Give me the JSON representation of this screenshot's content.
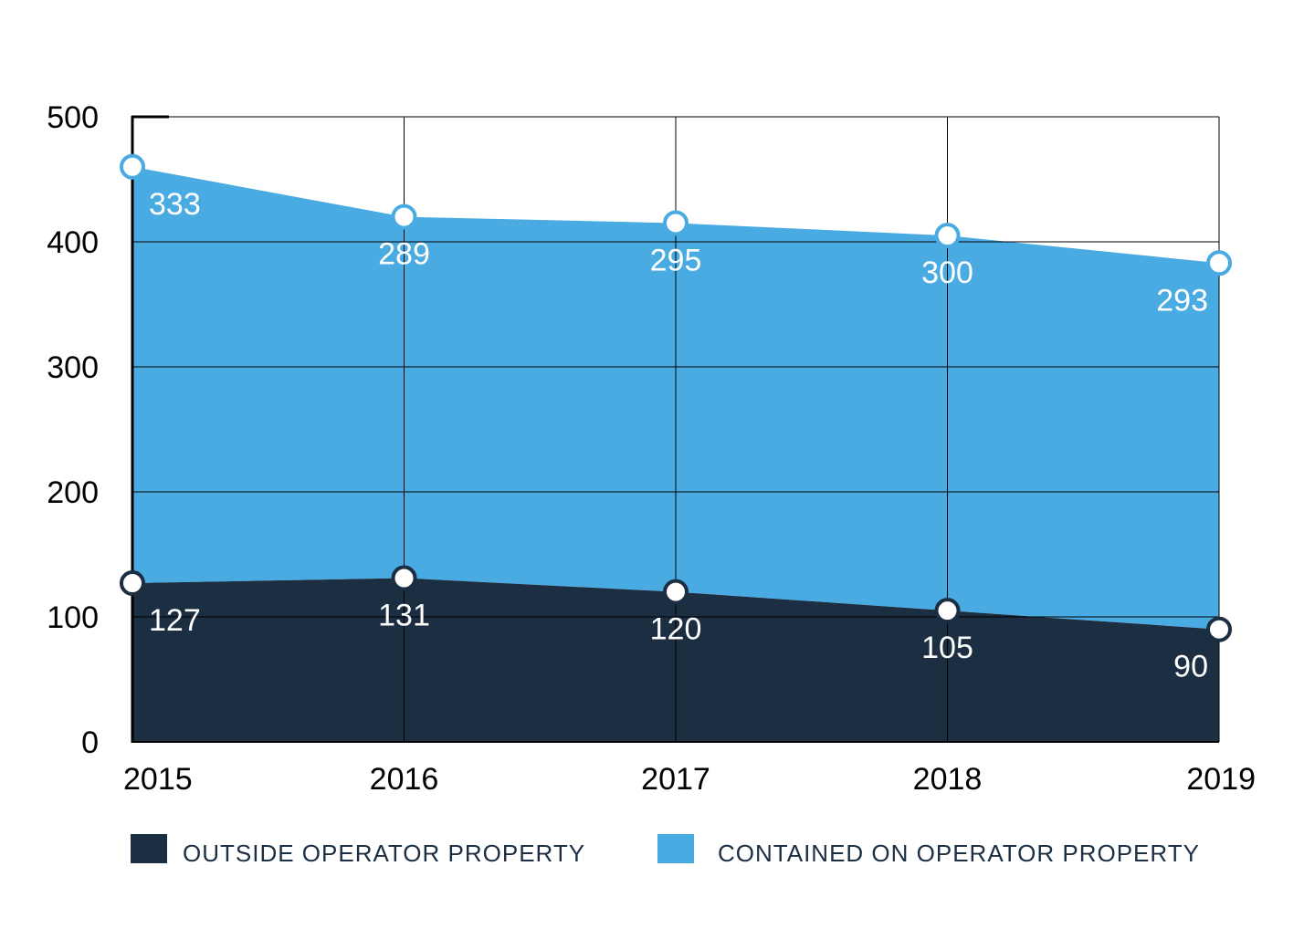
{
  "chart_data": {
    "type": "area",
    "stacked": true,
    "title": "",
    "xlabel": "",
    "ylabel": "",
    "categories": [
      "2015",
      "2016",
      "2017",
      "2018",
      "2019"
    ],
    "ylim": [
      0,
      500
    ],
    "yticks": [
      "0",
      "100",
      "200",
      "300",
      "400",
      "500"
    ],
    "grid": true,
    "legend_position": "bottom",
    "series": [
      {
        "name": "OUTSIDE OPERATOR PROPERTY",
        "values": [
          127,
          131,
          120,
          105,
          90
        ],
        "labels": [
          "127",
          "131",
          "120",
          "105",
          "90"
        ],
        "color": "#1b2e42",
        "label_color": "#ffffff"
      },
      {
        "name": "CONTAINED ON OPERATOR PROPERTY",
        "values": [
          333,
          289,
          295,
          300,
          293
        ],
        "labels": [
          "333",
          "289",
          "295",
          "300",
          "293"
        ],
        "color": "#4aabe3",
        "label_color": "#ffffff"
      }
    ]
  }
}
